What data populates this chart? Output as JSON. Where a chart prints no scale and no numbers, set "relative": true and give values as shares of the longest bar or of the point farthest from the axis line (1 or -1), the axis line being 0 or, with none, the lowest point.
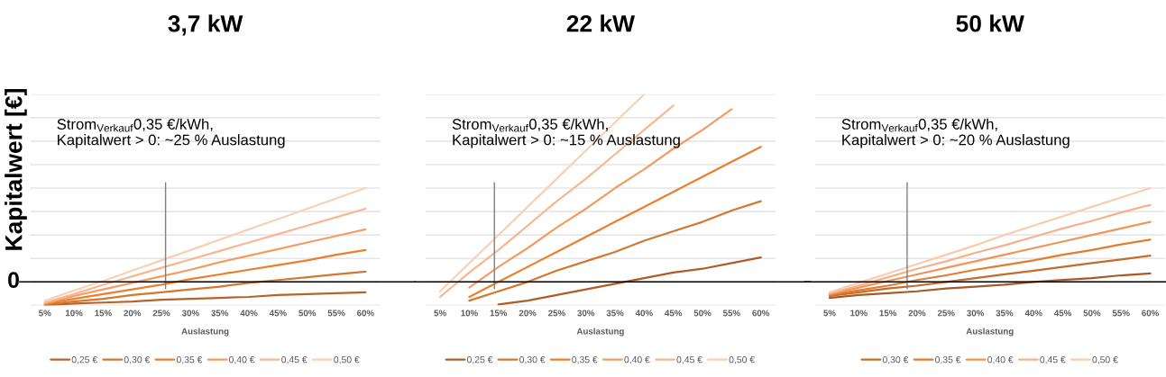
{
  "chart_data": [
    {
      "type": "line",
      "title": "3,7 kW",
      "xlabel": "Auslastung",
      "ylabel": "Kapitalwert [€]",
      "relative": true,
      "grid": "y",
      "legend": "bottom",
      "tick_labels": "x",
      "marker": "none",
      "line_style": "solid",
      "x": [
        5,
        10,
        15,
        20,
        25,
        30,
        35,
        40,
        45,
        50,
        55,
        60
      ],
      "xlim": [
        2.5,
        62.5
      ],
      "xticks": [
        {
          "value": 5,
          "label": "5%"
        },
        {
          "value": 10,
          "label": "10%"
        },
        {
          "value": 15,
          "label": "15%"
        },
        {
          "value": 20,
          "label": "20%"
        },
        {
          "value": 25,
          "label": "25%"
        },
        {
          "value": 30,
          "label": "30%"
        },
        {
          "value": 35,
          "label": "35%"
        },
        {
          "value": 40,
          "label": "40%"
        },
        {
          "value": 45,
          "label": "45%"
        },
        {
          "value": 50,
          "label": "50%"
        },
        {
          "value": 55,
          "label": "55%"
        },
        {
          "value": 60,
          "label": "60%"
        }
      ],
      "series": [
        {
          "name": "0,25 €",
          "color": "#b5652b",
          "values": [
            -0.25,
            -0.23,
            -0.22,
            -0.21,
            -0.19,
            -0.18,
            -0.17,
            -0.16,
            -0.14,
            -0.13,
            -0.12,
            -0.11
          ]
        },
        {
          "name": "0,30 €",
          "color": "#d4772f",
          "values": [
            -0.24,
            -0.21,
            -0.18,
            -0.14,
            -0.11,
            -0.08,
            -0.05,
            -0.01,
            0.02,
            0.05,
            0.08,
            0.11
          ]
        },
        {
          "name": "0,35 €",
          "color": "#ec7f2b",
          "values": [
            -0.23,
            -0.18,
            -0.13,
            -0.08,
            -0.03,
            0.03,
            0.08,
            0.13,
            0.18,
            0.23,
            0.29,
            0.34
          ]
        },
        {
          "name": "0,40 €",
          "color": "#f29d63",
          "values": [
            -0.23,
            -0.15,
            -0.08,
            -0.01,
            0.06,
            0.13,
            0.21,
            0.28,
            0.35,
            0.42,
            0.49,
            0.56
          ]
        },
        {
          "name": "0,45 €",
          "color": "#f6b791",
          "values": [
            -0.22,
            -0.13,
            -0.03,
            0.06,
            0.15,
            0.24,
            0.33,
            0.42,
            0.51,
            0.6,
            0.69,
            0.78
          ]
        },
        {
          "name": "0,50 €",
          "color": "#f9d0b6",
          "values": [
            -0.2,
            -0.09,
            0.01,
            0.12,
            0.23,
            0.34,
            0.45,
            0.56,
            0.67,
            0.78,
            0.89,
            1.0
          ]
        }
      ],
      "ref_lines": [
        {
          "axis": "x",
          "value": 25.7,
          "color": "#7f7f7f"
        }
      ],
      "annotations": [
        "Strom$_{Verkauf}$0,35 €/kWh,\nKapitalwert > 0: ~25 % Auslastung",
        "0"
      ]
    },
    {
      "type": "line",
      "title": "22 kW",
      "xlabel": "Auslastung",
      "relative": true,
      "grid": "y",
      "legend": "bottom",
      "tick_labels": "x",
      "marker": "none",
      "line_style": "solid",
      "x": [
        5,
        10,
        15,
        20,
        25,
        30,
        35,
        40,
        45,
        50,
        55,
        60
      ],
      "xlim": [
        2.5,
        62.5
      ],
      "xticks": [
        {
          "value": 5,
          "label": "5%"
        },
        {
          "value": 10,
          "label": "10%"
        },
        {
          "value": 15,
          "label": "15%"
        },
        {
          "value": 20,
          "label": "20%"
        },
        {
          "value": 25,
          "label": "25%"
        },
        {
          "value": 30,
          "label": "30%"
        },
        {
          "value": 35,
          "label": "35%"
        },
        {
          "value": 40,
          "label": "40%"
        },
        {
          "value": 45,
          "label": "45%"
        },
        {
          "value": 50,
          "label": "50%"
        },
        {
          "value": 55,
          "label": "55%"
        },
        {
          "value": 60,
          "label": "60%"
        }
      ],
      "series": [
        {
          "name": "0,25 €",
          "color": "#ad5e27",
          "values": [
            null,
            null,
            -0.12,
            -0.1,
            -0.07,
            -0.04,
            -0.01,
            0.02,
            0.05,
            0.07,
            0.1,
            0.13
          ]
        },
        {
          "name": "0,30 €",
          "color": "#d4772f",
          "values": [
            null,
            -0.1,
            -0.05,
            0.0,
            0.06,
            0.11,
            0.16,
            0.22,
            0.27,
            0.32,
            0.38,
            0.43
          ]
        },
        {
          "name": "0,35 €",
          "color": "#ec7f2b",
          "values": [
            null,
            -0.08,
            0.0,
            0.08,
            0.16,
            0.24,
            0.32,
            0.4,
            0.48,
            0.56,
            0.64,
            0.72
          ]
        },
        {
          "name": "0,40 €",
          "color": "#f29d63",
          "values": [
            null,
            -0.03,
            0.08,
            0.18,
            0.29,
            0.39,
            0.5,
            0.6,
            0.71,
            0.81,
            0.92,
            null
          ]
        },
        {
          "name": "0,45 €",
          "color": "#f6b791",
          "values": [
            -0.08,
            0.05,
            0.17,
            0.3,
            0.43,
            0.55,
            0.68,
            0.81,
            0.94,
            null,
            null,
            null
          ]
        },
        {
          "name": "0,50 €",
          "color": "#f9d0b6",
          "values": [
            -0.05,
            0.1,
            0.25,
            0.4,
            0.55,
            0.7,
            0.85,
            1.0,
            null,
            null,
            null,
            null
          ]
        }
      ],
      "ref_lines": [
        {
          "axis": "x",
          "value": 14.3,
          "color": "#7f7f7f"
        }
      ],
      "annotations": [
        "Strom$_{Verkauf}$0,35 €/kWh,\nKapitalwert > 0: ~15 % Auslastung"
      ]
    },
    {
      "type": "line",
      "title": "50 kW",
      "xlabel": "Auslastung",
      "relative": true,
      "grid": "y",
      "legend": "bottom",
      "tick_labels": "x",
      "marker": "none",
      "line_style": "solid",
      "x": [
        5,
        10,
        15,
        20,
        25,
        30,
        35,
        40,
        45,
        50,
        55,
        60
      ],
      "xlim": [
        2.5,
        62.5
      ],
      "xticks": [
        {
          "value": 5,
          "label": "5%"
        },
        {
          "value": 10,
          "label": "10%"
        },
        {
          "value": 15,
          "label": "15%"
        },
        {
          "value": 20,
          "label": "20%"
        },
        {
          "value": 25,
          "label": "25%"
        },
        {
          "value": 30,
          "label": "30%"
        },
        {
          "value": 35,
          "label": "35%"
        },
        {
          "value": 40,
          "label": "40%"
        },
        {
          "value": 45,
          "label": "45%"
        },
        {
          "value": 50,
          "label": "50%"
        },
        {
          "value": 55,
          "label": "55%"
        },
        {
          "value": 60,
          "label": "60%"
        }
      ],
      "series": [
        {
          "color": "#a85a26",
          "values": [
            -0.17,
            -0.14,
            -0.12,
            -0.1,
            -0.07,
            -0.05,
            -0.03,
            0.0,
            0.02,
            0.04,
            0.07,
            0.09
          ]
        },
        {
          "name": "0,30 €",
          "color": "#c46c2c",
          "values": [
            -0.15,
            -0.11,
            -0.07,
            -0.04,
            0.0,
            0.04,
            0.08,
            0.12,
            0.16,
            0.2,
            0.24,
            0.28
          ]
        },
        {
          "name": "0,35 €",
          "color": "#e47b2d",
          "values": [
            -0.14,
            -0.09,
            -0.04,
            0.02,
            0.07,
            0.13,
            0.18,
            0.23,
            0.29,
            0.34,
            0.4,
            0.45
          ]
        },
        {
          "name": "0,40 €",
          "color": "#f0955a",
          "values": [
            -0.13,
            -0.06,
            0.01,
            0.08,
            0.15,
            0.22,
            0.29,
            0.36,
            0.43,
            0.5,
            0.57,
            0.64
          ]
        },
        {
          "name": "0,45 €",
          "color": "#f5b28a",
          "values": [
            -0.12,
            -0.04,
            0.05,
            0.14,
            0.22,
            0.31,
            0.39,
            0.48,
            0.57,
            0.65,
            0.74,
            0.82
          ]
        },
        {
          "name": "0,50 €",
          "color": "#f9ccb0",
          "values": [
            -0.11,
            -0.01,
            0.09,
            0.19,
            0.29,
            0.39,
            0.5,
            0.6,
            0.7,
            0.8,
            0.9,
            1.0
          ]
        }
      ],
      "ref_lines": [
        {
          "axis": "x",
          "value": 18.3,
          "color": "#7f7f7f"
        }
      ],
      "annotations": [
        "Strom$_{Verkauf}$0,35 €/kWh,\nKapitalwert > 0: ~20 % Auslastung"
      ]
    }
  ]
}
